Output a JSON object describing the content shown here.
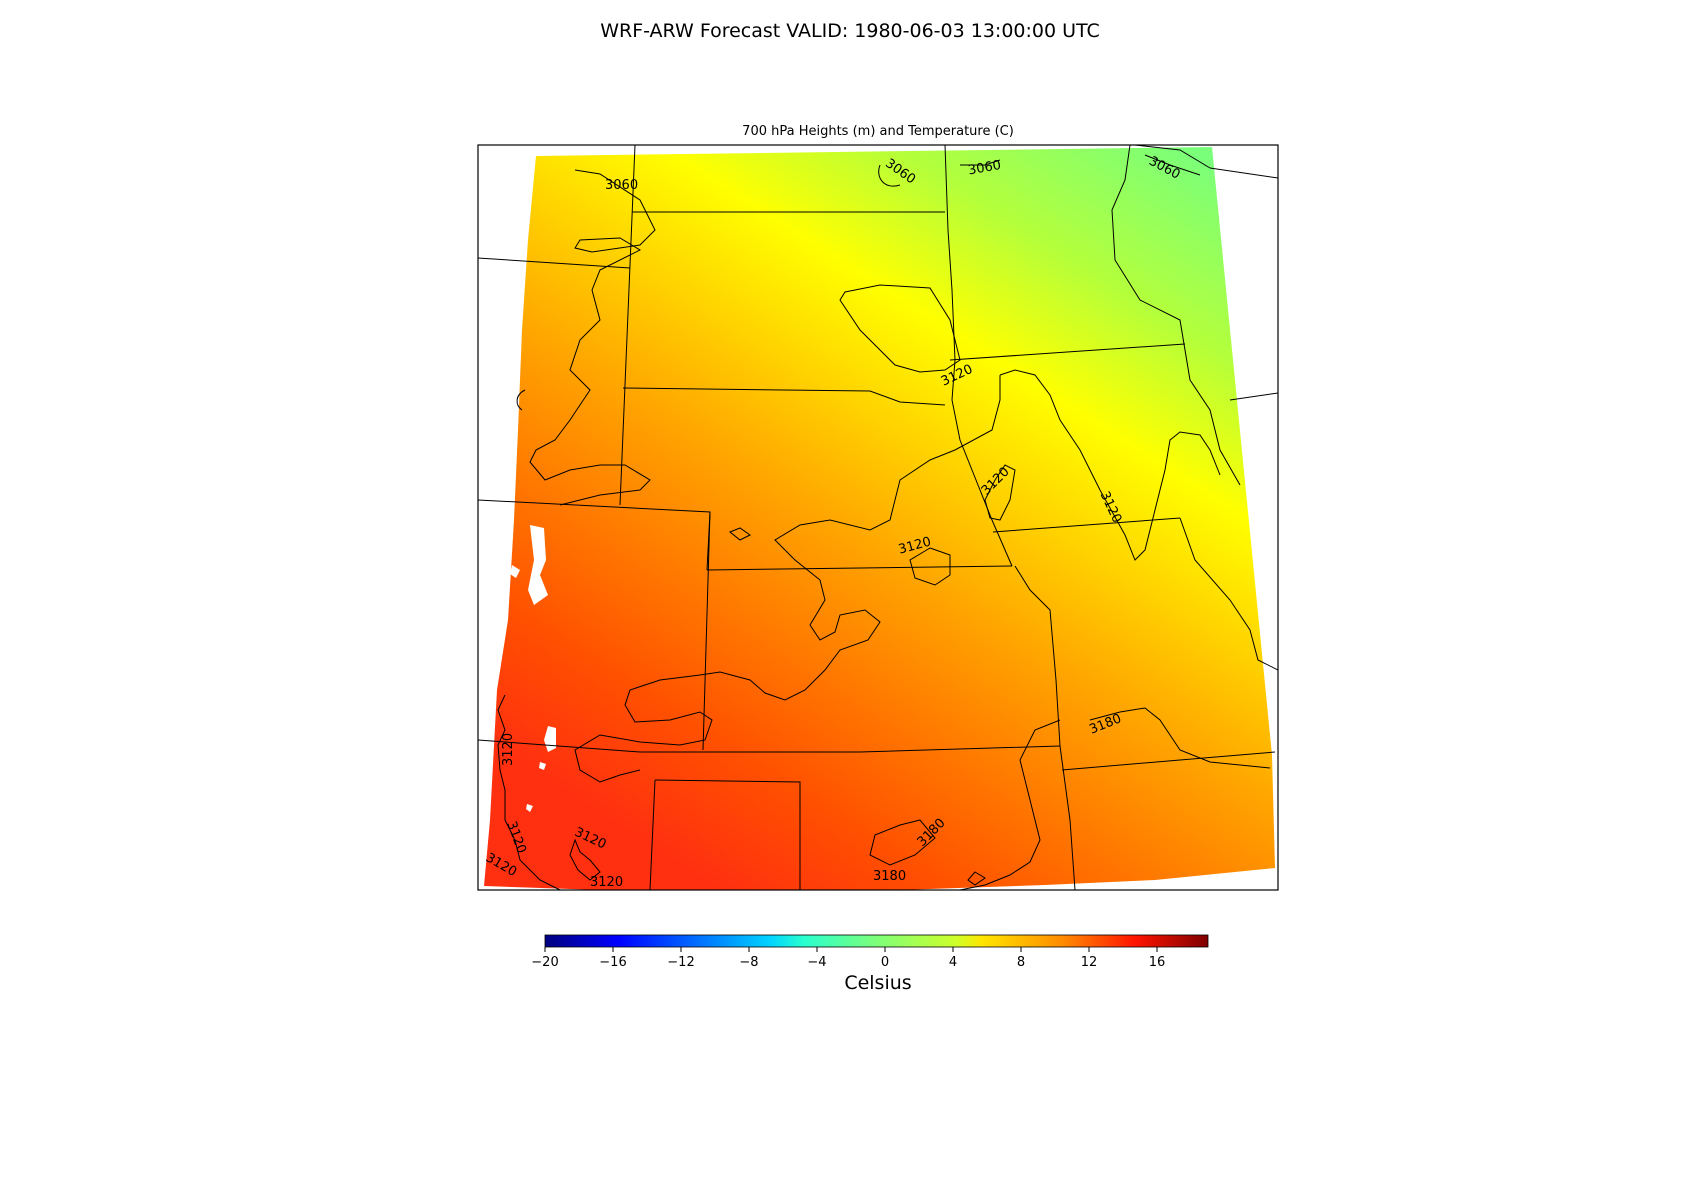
{
  "figure": {
    "suptitle": "WRF-ARW Forecast VALID: 1980-06-03 13:00:00 UTC",
    "subplot_title": "700 hPa Heights (m) and Temperature (C)"
  },
  "colorbar": {
    "label": "Celsius",
    "range": [
      -20,
      19
    ],
    "ticks": [
      "−20",
      "−16",
      "−12",
      "−8",
      "−4",
      "0",
      "4",
      "8",
      "12",
      "16"
    ],
    "tick_values": [
      -20,
      -16,
      -12,
      -8,
      -4,
      0,
      4,
      8,
      12,
      16
    ],
    "colormap": "jet"
  },
  "contour_labels": [
    "3060",
    "3060",
    "3060",
    "3060",
    "3120",
    "3120",
    "3120",
    "3120",
    "3120",
    "3120",
    "3120",
    "3120",
    "3180",
    "3180",
    "3180",
    "3120"
  ],
  "map_colors": {
    "cold_ne": "#7aff7a",
    "mid": "#ffe500",
    "warm_sw": "#ff3010"
  }
}
